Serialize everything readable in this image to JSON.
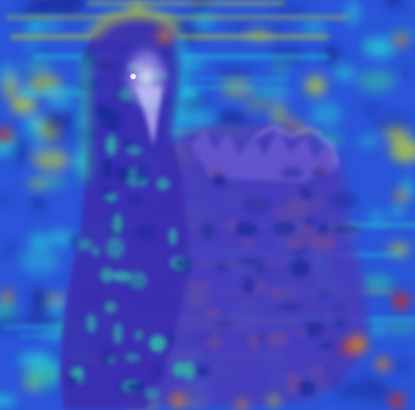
{
  "image": {
    "subject": "bird-on-nest-icon",
    "overlay": "attention-heatmap",
    "colors": {
      "background_blue": "#2a55d8",
      "deep_blue": "#1a2a9a",
      "cyan": "#28c8d8",
      "teal": "#30b8a8",
      "yellow_green": "#b8d040",
      "orange": "#e88a20",
      "red": "#d02818",
      "purple_body": "#4a3ab8",
      "violet_highlight": "#9a8ae8",
      "white_highlight": "#e8e8ff"
    },
    "legend": []
  }
}
